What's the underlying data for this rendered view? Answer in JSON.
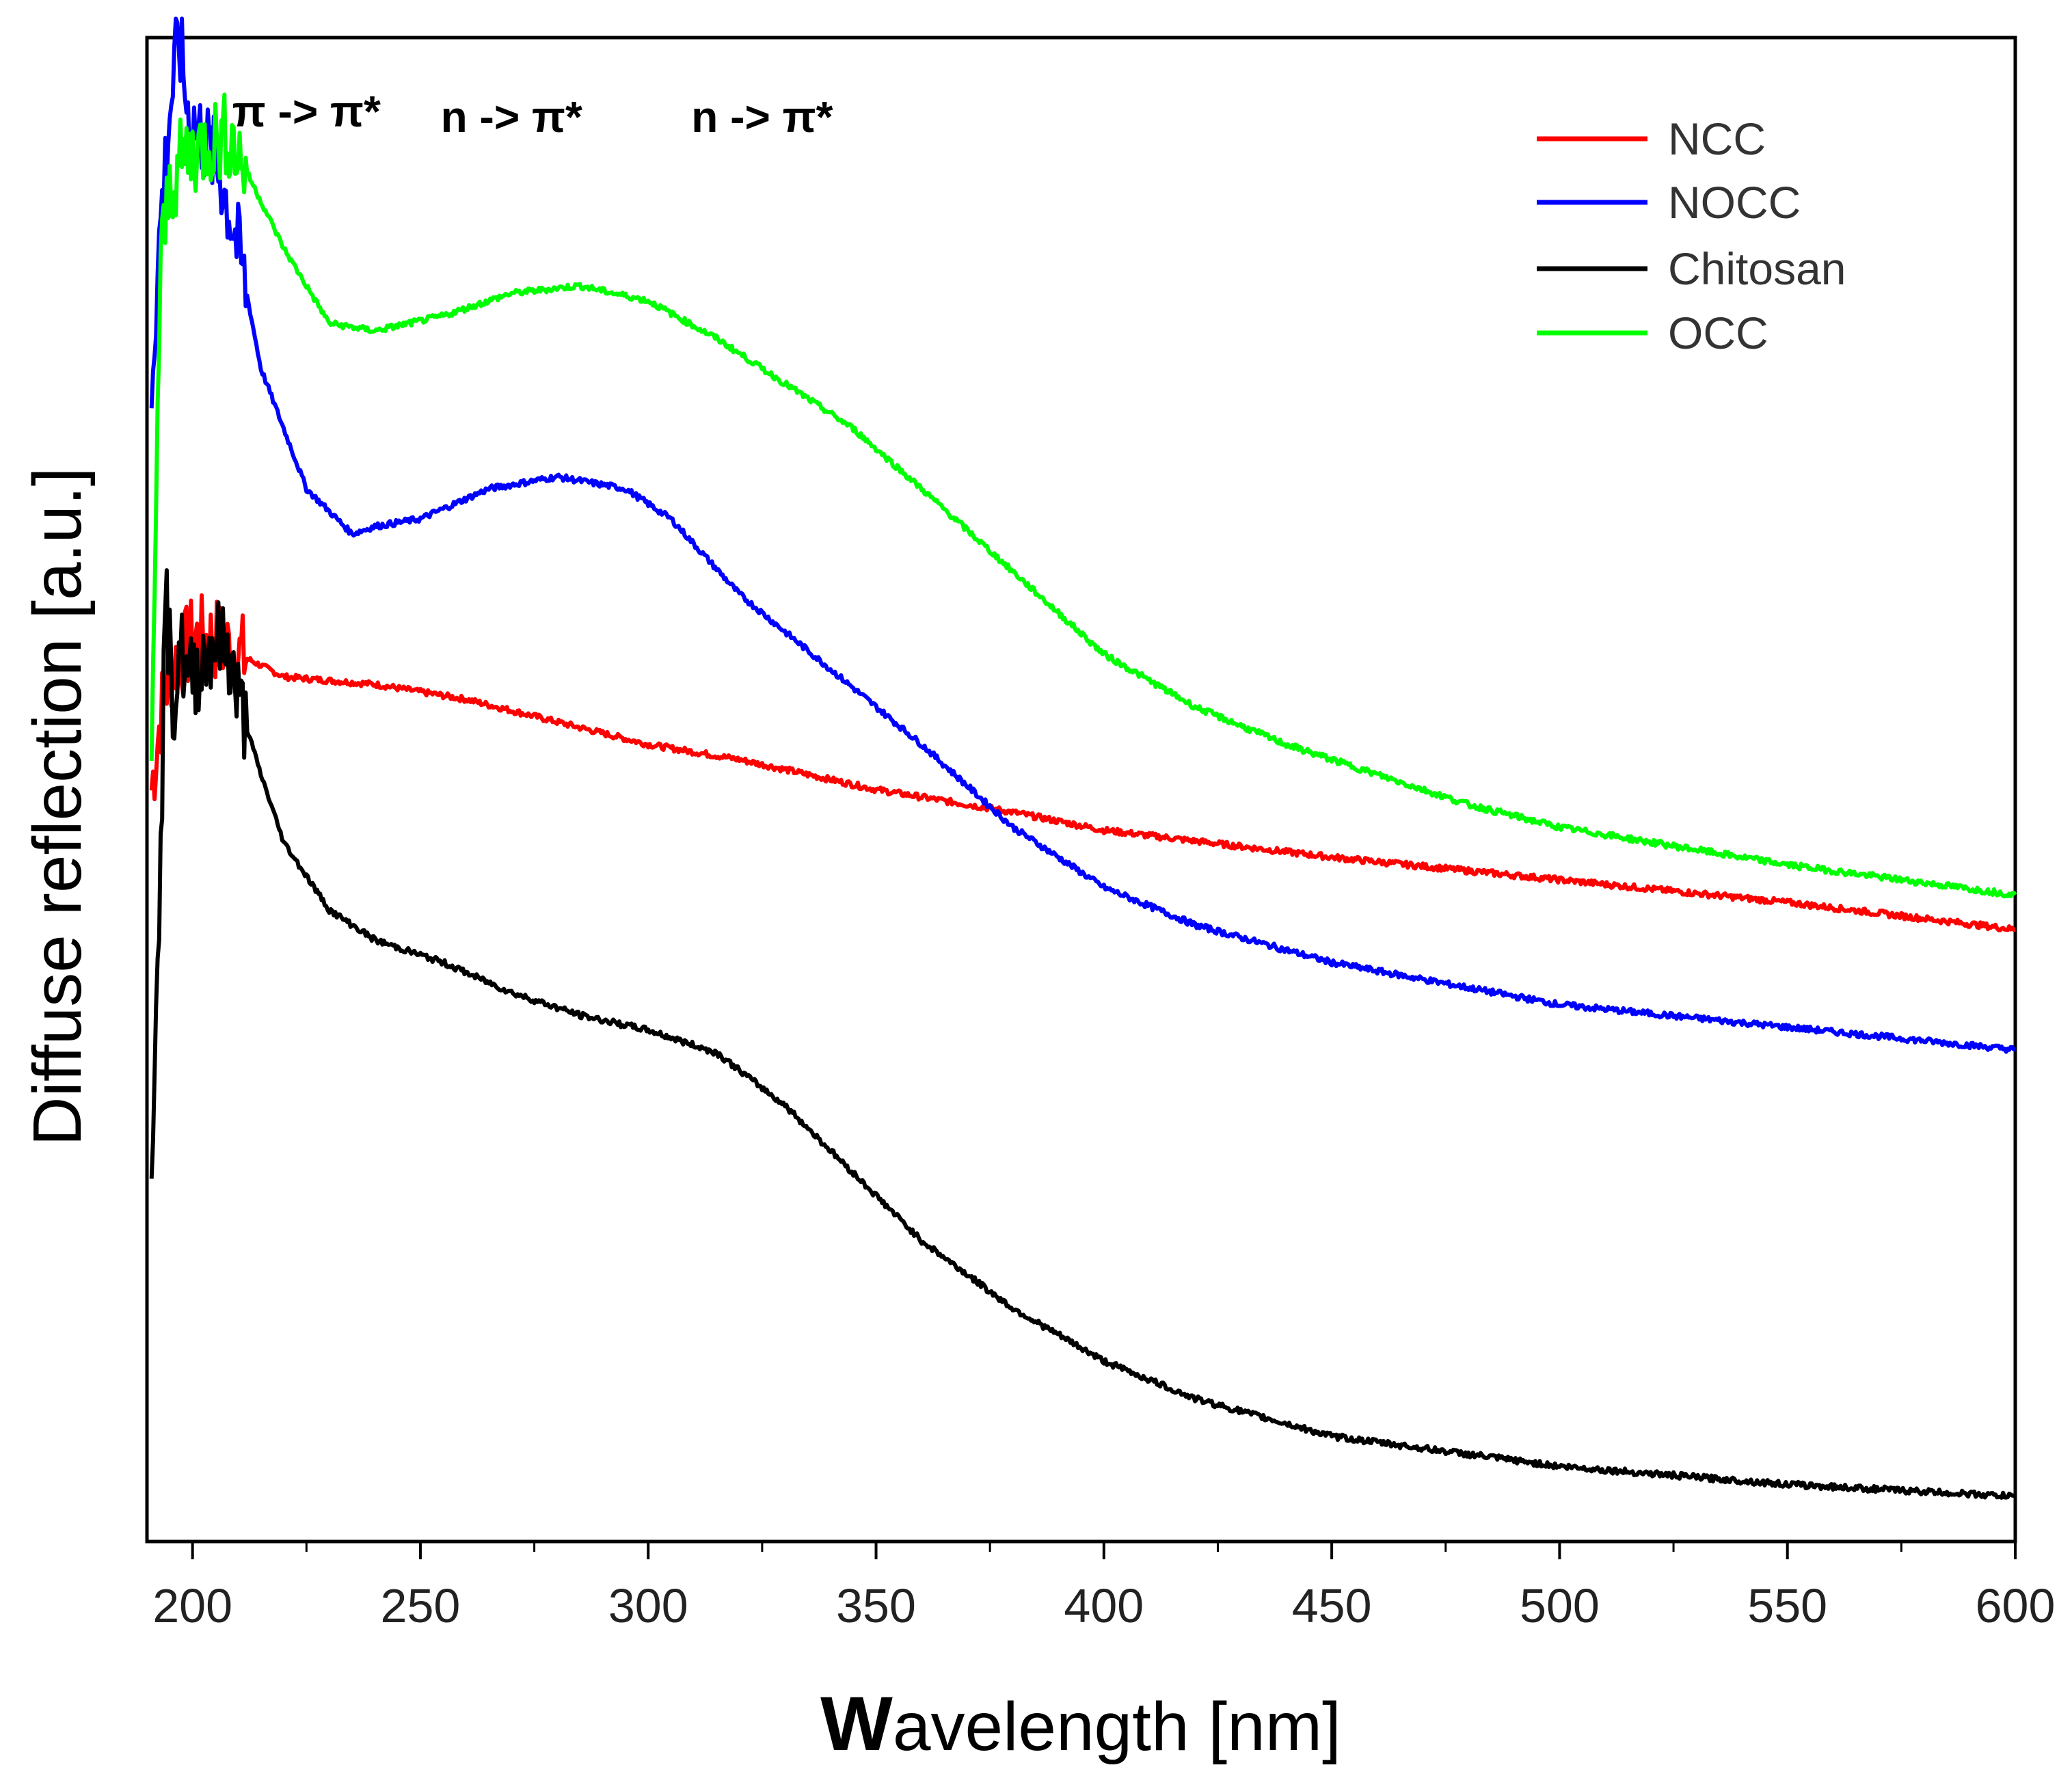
{
  "chart_data": {
    "type": "line",
    "title": "",
    "xlabel": "Wavelength [nm]",
    "xlabel_initial": "W",
    "xlabel_rest": "avelength [nm]",
    "ylabel": "Diffuse reflection [a.u.]",
    "xlim": [
      190,
      600
    ],
    "ylim": [
      0,
      100
    ],
    "x_ticks": [
      200,
      250,
      300,
      350,
      400,
      450,
      500,
      550,
      600
    ],
    "x_tick_labels": [
      "200",
      "250",
      "300",
      "350",
      "400",
      "450",
      "500",
      "550",
      "600"
    ],
    "y_ticks_shown": false,
    "grid": false,
    "legend_position": "top-right",
    "annotations": [
      {
        "text": "π -> π*",
        "x": 225
      },
      {
        "text": "n -> π*",
        "x": 270
      },
      {
        "text": "n -> π*",
        "x": 325
      }
    ],
    "series": [
      {
        "name": "NCC",
        "color": "#ff0000",
        "noise": 0.4,
        "points": [
          [
            191,
            50
          ],
          [
            193,
            55
          ],
          [
            195,
            58
          ],
          [
            198,
            59
          ],
          [
            200,
            60
          ],
          [
            205,
            60
          ],
          [
            210,
            59
          ],
          [
            220,
            57.5
          ],
          [
            240,
            57
          ],
          [
            260,
            56
          ],
          [
            280,
            54.5
          ],
          [
            300,
            53
          ],
          [
            320,
            52
          ],
          [
            350,
            50
          ],
          [
            380,
            48.5
          ],
          [
            400,
            47.3
          ],
          [
            450,
            45.5
          ],
          [
            500,
            44
          ],
          [
            550,
            42.5
          ],
          [
            600,
            40.7
          ]
        ]
      },
      {
        "name": "NOCC",
        "color": "#0000ff",
        "noise": 0.4,
        "points": [
          [
            191,
            77
          ],
          [
            193,
            88
          ],
          [
            195,
            95
          ],
          [
            197,
            100
          ],
          [
            199,
            95
          ],
          [
            203,
            93
          ],
          [
            206,
            91
          ],
          [
            210,
            86
          ],
          [
            215,
            78
          ],
          [
            225,
            70
          ],
          [
            235,
            67
          ],
          [
            240,
            67.5
          ],
          [
            250,
            68
          ],
          [
            265,
            70
          ],
          [
            280,
            70.8
          ],
          [
            295,
            70
          ],
          [
            305,
            68
          ],
          [
            320,
            63
          ],
          [
            340,
            58
          ],
          [
            360,
            53
          ],
          [
            380,
            47.5
          ],
          [
            400,
            43.5
          ],
          [
            420,
            41
          ],
          [
            450,
            38.5
          ],
          [
            500,
            35.7
          ],
          [
            550,
            34.2
          ],
          [
            600,
            32.7
          ]
        ]
      },
      {
        "name": "Chitosan",
        "color": "#000000",
        "noise": 0.4,
        "points": [
          [
            191,
            23
          ],
          [
            192,
            38
          ],
          [
            193,
            45
          ],
          [
            194,
            63
          ],
          [
            196,
            55
          ],
          [
            197,
            60
          ],
          [
            199,
            57
          ],
          [
            202,
            58.5
          ],
          [
            205,
            60
          ],
          [
            208,
            59
          ],
          [
            210,
            56
          ],
          [
            215,
            51
          ],
          [
            220,
            46.5
          ],
          [
            230,
            42
          ],
          [
            240,
            40
          ],
          [
            255,
            38.5
          ],
          [
            270,
            36.5
          ],
          [
            285,
            35
          ],
          [
            300,
            34
          ],
          [
            315,
            32.5
          ],
          [
            330,
            29
          ],
          [
            345,
            24.5
          ],
          [
            360,
            20
          ],
          [
            380,
            15.5
          ],
          [
            400,
            12
          ],
          [
            420,
            9.5
          ],
          [
            450,
            7
          ],
          [
            500,
            5
          ],
          [
            550,
            3.8
          ],
          [
            600,
            3
          ]
        ]
      },
      {
        "name": "OCC",
        "color": "#00ff00",
        "noise": 0.4,
        "points": [
          [
            191,
            50
          ],
          [
            192,
            70
          ],
          [
            193,
            85
          ],
          [
            195,
            90
          ],
          [
            198,
            92
          ],
          [
            203,
            93
          ],
          [
            208,
            93.5
          ],
          [
            212,
            91
          ],
          [
            220,
            86
          ],
          [
            230,
            81
          ],
          [
            240,
            80.5
          ],
          [
            255,
            81.5
          ],
          [
            270,
            83
          ],
          [
            285,
            83.5
          ],
          [
            300,
            82.5
          ],
          [
            315,
            80
          ],
          [
            330,
            77
          ],
          [
            345,
            74
          ],
          [
            360,
            70
          ],
          [
            380,
            64.5
          ],
          [
            400,
            59
          ],
          [
            420,
            55.5
          ],
          [
            440,
            53
          ],
          [
            460,
            51
          ],
          [
            480,
            49
          ],
          [
            500,
            47.5
          ],
          [
            550,
            45
          ],
          [
            600,
            43
          ]
        ]
      }
    ]
  }
}
